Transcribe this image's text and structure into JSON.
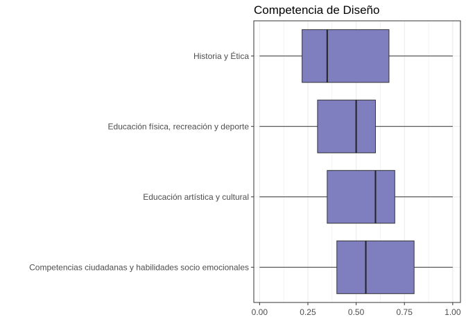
{
  "chart_data": {
    "type": "boxplot",
    "orientation": "horizontal",
    "title": "Competencia de Diseño",
    "xlabel": "",
    "ylabel": "",
    "xlim": [
      -0.03,
      1.04
    ],
    "xticks": [
      0.0,
      0.25,
      0.5,
      0.75,
      1.0
    ],
    "xtick_labels": [
      "0.00",
      "0.25",
      "0.50",
      "0.75",
      "1.00"
    ],
    "grid": true,
    "box_color": "#7f7fbf",
    "box_edge_color": "#333333",
    "panel_border_color": "#333333",
    "grid_color": "#ebebeb",
    "categories": [
      "Historia y Ética",
      "Educación física, recreación y deporte",
      "Educación artística y cultural",
      "Competencias ciudadanas y habilidades socio emocionales"
    ],
    "boxes": [
      {
        "category": "Historia y Ética",
        "min": 0.0,
        "q1": 0.22,
        "median": 0.35,
        "q3": 0.67,
        "max": 1.0
      },
      {
        "category": "Educación física, recreación y deporte",
        "min": 0.0,
        "q1": 0.3,
        "median": 0.5,
        "q3": 0.6,
        "max": 1.0
      },
      {
        "category": "Educación artística y cultural",
        "min": 0.0,
        "q1": 0.35,
        "median": 0.6,
        "q3": 0.7,
        "max": 1.0
      },
      {
        "category": "Competencias ciudadanas y habilidades socio emocionales",
        "min": 0.0,
        "q1": 0.4,
        "median": 0.55,
        "q3": 0.8,
        "max": 1.0
      }
    ]
  }
}
